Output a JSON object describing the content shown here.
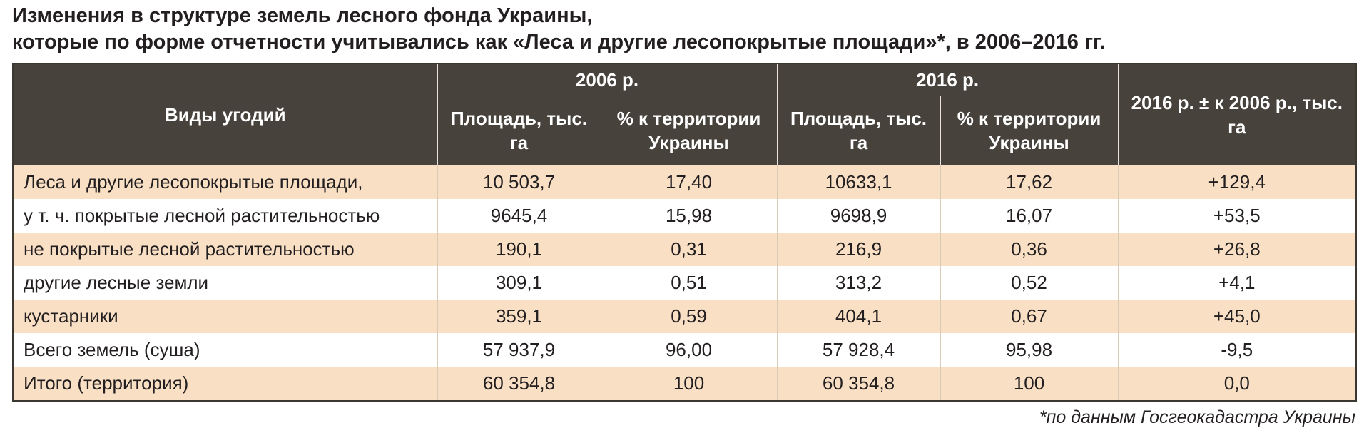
{
  "header": {
    "title": [
      "Изменения в структуре земель лесного фонда Украины,",
      "которые по форме отчетности учитывались как «Леса и другие лесопокрытые площади»*, в 2006–2016 гг."
    ]
  },
  "table": {
    "stub": "Виды угодий",
    "years": [
      "2006 р.",
      "2016 р."
    ],
    "subheaders": [
      "Площадь, тыс. га",
      "% к территории Украины",
      "Площадь, тыс. га",
      "% к территории Украины"
    ],
    "change": "2016 р. ± к 2006 р., тыс. га",
    "rows": [
      [
        "Леса и другие лесопокрытые площади,",
        "10 503,7",
        "17,40",
        "10633,1",
        "17,62",
        "+129,4"
      ],
      [
        "у т. ч. покрытые лесной растительностью",
        "9645,4",
        "15,98",
        "9698,9",
        "16,07",
        "+53,5"
      ],
      [
        "не покрытые лесной растительностью",
        "190,1",
        "0,31",
        "216,9",
        "0,36",
        "+26,8"
      ],
      [
        "другие лесные земли",
        "309,1",
        "0,51",
        "313,2",
        "0,52",
        "+4,1"
      ],
      [
        "кустарники",
        "359,1",
        "0,59",
        "404,1",
        "0,67",
        "+45,0"
      ],
      [
        "Всего земель (суша)",
        "57 937,9",
        "96,00",
        "57 928,4",
        "95,98",
        "-9,5"
      ],
      [
        "Итого (территория)",
        "60 354,8",
        "100",
        "60 354,8",
        "100",
        "0,0"
      ]
    ]
  },
  "footnote": "*по данным Госгеокадастра Украины"
}
